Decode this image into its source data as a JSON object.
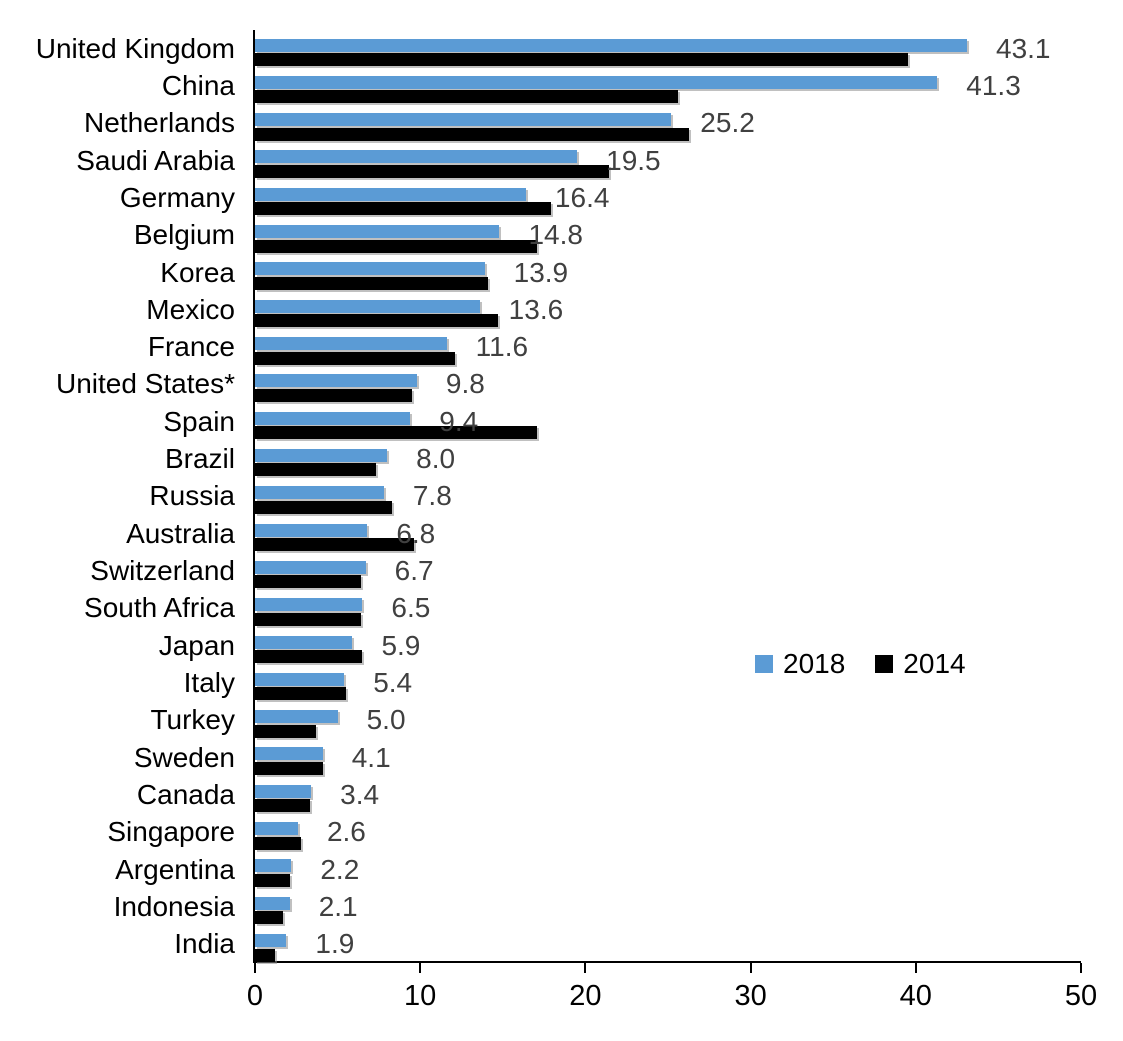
{
  "chart_data": {
    "type": "bar",
    "orientation": "horizontal",
    "title": "",
    "xlabel": "",
    "ylabel": "",
    "xlim": [
      0,
      50
    ],
    "xticks": [
      "0",
      "10",
      "20",
      "30",
      "40",
      "50"
    ],
    "grid": false,
    "legend_position": "center-right",
    "categories": [
      "United Kingdom",
      "China",
      "Netherlands",
      "Saudi Arabia",
      "Germany",
      "Belgium",
      "Korea",
      "Mexico",
      "France",
      "United States*",
      "Spain",
      "Brazil",
      "Russia",
      "Australia",
      "Switzerland",
      "South Africa",
      "Japan",
      "Italy",
      "Turkey",
      "Sweden",
      "Canada",
      "Singapore",
      "Argentina",
      "Indonesia",
      "India"
    ],
    "series": [
      {
        "name": "2018",
        "color": "#5B9BD5",
        "values": [
          43.1,
          41.3,
          25.2,
          19.5,
          16.4,
          14.8,
          13.9,
          13.6,
          11.6,
          9.8,
          9.4,
          8.0,
          7.8,
          6.8,
          6.7,
          6.5,
          5.9,
          5.4,
          5.0,
          4.1,
          3.4,
          2.6,
          2.2,
          2.1,
          1.9
        ],
        "data_labels": [
          "43.1",
          "41.3",
          "25.2",
          "19.5",
          "16.4",
          "14.8",
          "13.9",
          "13.6",
          "11.6",
          "9.8",
          "9.4",
          "8.0",
          "7.8",
          "6.8",
          "6.7",
          "6.5",
          "5.9",
          "5.4",
          "5.0",
          "4.1",
          "3.4",
          "2.6",
          "2.2",
          "2.1",
          "1.9"
        ]
      },
      {
        "name": "2014",
        "color": "#000000",
        "values": [
          39.5,
          25.6,
          26.3,
          21.4,
          17.9,
          17.1,
          14.1,
          14.7,
          12.1,
          9.5,
          17.1,
          7.3,
          8.3,
          9.6,
          6.4,
          6.4,
          6.5,
          5.5,
          3.7,
          4.1,
          3.3,
          2.8,
          2.1,
          1.7,
          1.2
        ]
      }
    ]
  },
  "legend": {
    "items": [
      {
        "label": "2018",
        "color": "#5B9BD5"
      },
      {
        "label": "2014",
        "color": "#000000"
      }
    ]
  },
  "colors": {
    "background": "#ffffff",
    "axis": "#000000",
    "value_label_text": "#404040",
    "category_label_text": "#000000"
  }
}
